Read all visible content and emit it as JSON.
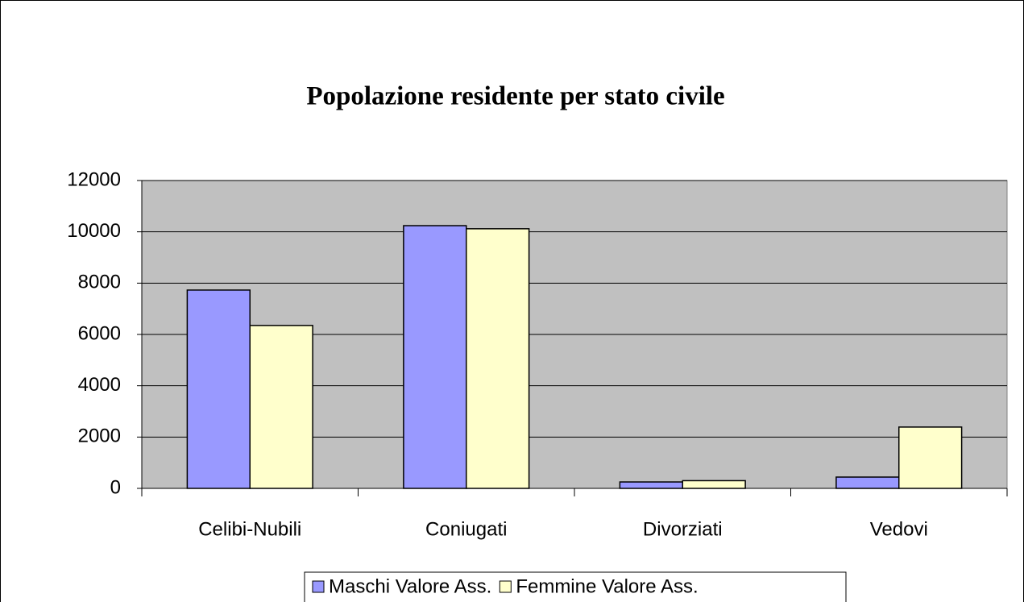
{
  "chart_data": {
    "type": "bar",
    "title": "Popolazione residente per stato civile",
    "categories": [
      "Celibi-Nubili",
      "Coniugati",
      "Divorziati",
      "Vedovi"
    ],
    "series": [
      {
        "name": "Maschi Valore Ass.",
        "color": "#9999ff",
        "values": [
          7730,
          10240,
          250,
          440
        ]
      },
      {
        "name": "Femmine Valore Ass.",
        "color": "#ffffcc",
        "values": [
          6350,
          10120,
          300,
          2390
        ]
      }
    ],
    "ylim": [
      0,
      12000
    ],
    "yticks": [
      0,
      2000,
      4000,
      6000,
      8000,
      10000,
      12000
    ],
    "grid": true,
    "legend": "bottom",
    "plot_background": "#c0c0c0"
  }
}
